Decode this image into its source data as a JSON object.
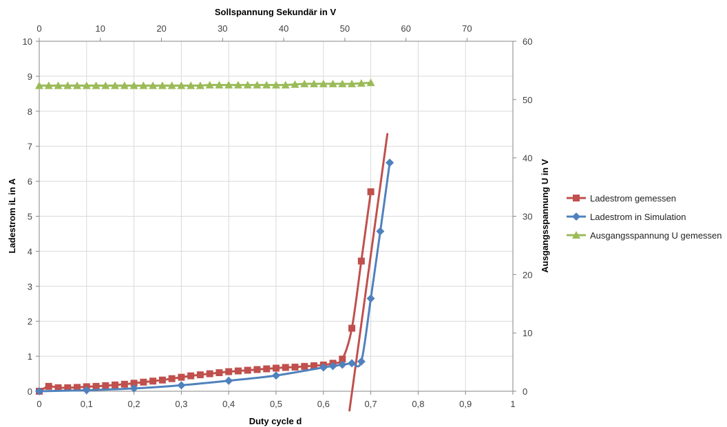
{
  "chart_data": {
    "type": "scatter",
    "title": "",
    "xlabel": "Duty cycle d",
    "x2label": "Sollspannung Sekundär in V",
    "ylabel": "Ladestrom iL in A",
    "y2label": "Ausgangsspannung U in V",
    "xlim": [
      0,
      1
    ],
    "x2lim": [
      0,
      77.5
    ],
    "ylim": [
      0,
      10
    ],
    "y2lim": [
      0,
      60
    ],
    "x_ticks": [
      0,
      0.1,
      0.2,
      0.3,
      0.4,
      0.5,
      0.6,
      0.7,
      0.8,
      0.9,
      1
    ],
    "x_tick_labels": [
      "0",
      "0,1",
      "0,2",
      "0,3",
      "0,4",
      "0,5",
      "0,6",
      "0,7",
      "0,8",
      "0,9",
      "1"
    ],
    "x2_ticks": [
      0,
      10,
      20,
      30,
      40,
      50,
      60,
      70
    ],
    "y_ticks": [
      0,
      1,
      2,
      3,
      4,
      5,
      6,
      7,
      8,
      9,
      10
    ],
    "y2_ticks": [
      0,
      10,
      20,
      30,
      40,
      50,
      60
    ],
    "grid": true,
    "legend_position": "right",
    "series": [
      {
        "name": "Ladestrom gemessen",
        "axis": "primary",
        "color": "#c0504d",
        "marker": "square",
        "x": [
          0,
          0.02,
          0.04,
          0.06,
          0.08,
          0.1,
          0.12,
          0.14,
          0.16,
          0.18,
          0.2,
          0.22,
          0.24,
          0.26,
          0.28,
          0.3,
          0.32,
          0.34,
          0.36,
          0.38,
          0.4,
          0.42,
          0.44,
          0.46,
          0.48,
          0.5,
          0.52,
          0.54,
          0.56,
          0.58,
          0.6,
          0.62,
          0.64,
          0.66,
          0.68,
          0.7
        ],
        "y": [
          0,
          0.14,
          0.1,
          0.1,
          0.11,
          0.13,
          0.14,
          0.16,
          0.18,
          0.2,
          0.23,
          0.26,
          0.29,
          0.32,
          0.36,
          0.4,
          0.44,
          0.47,
          0.5,
          0.53,
          0.56,
          0.58,
          0.6,
          0.62,
          0.64,
          0.66,
          0.68,
          0.69,
          0.71,
          0.73,
          0.75,
          0.8,
          0.92,
          1.8,
          3.72,
          5.7
        ]
      },
      {
        "name": "Ladestrom in Simulation",
        "axis": "primary",
        "color": "#4f81bd",
        "marker": "diamond",
        "x": [
          0,
          0.1,
          0.2,
          0.3,
          0.4,
          0.5,
          0.6,
          0.62,
          0.64,
          0.66,
          0.68,
          0.7,
          0.72,
          0.74
        ],
        "y": [
          0,
          0.03,
          0.08,
          0.17,
          0.3,
          0.45,
          0.68,
          0.72,
          0.76,
          0.8,
          0.85,
          2.65,
          4.57,
          6.53
        ]
      },
      {
        "name": "Ausgangsspannung U gemessen",
        "axis": "secondary",
        "color": "#9bbb59",
        "marker": "triangle",
        "x": [
          0,
          0.02,
          0.04,
          0.06,
          0.08,
          0.1,
          0.12,
          0.14,
          0.16,
          0.18,
          0.2,
          0.22,
          0.24,
          0.26,
          0.28,
          0.3,
          0.32,
          0.34,
          0.36,
          0.38,
          0.4,
          0.42,
          0.44,
          0.46,
          0.48,
          0.5,
          0.52,
          0.54,
          0.56,
          0.58,
          0.6,
          0.62,
          0.64,
          0.66,
          0.68,
          0.7
        ],
        "y": [
          52.4,
          52.4,
          52.4,
          52.4,
          52.4,
          52.4,
          52.4,
          52.4,
          52.4,
          52.4,
          52.4,
          52.4,
          52.4,
          52.4,
          52.4,
          52.4,
          52.4,
          52.4,
          52.5,
          52.5,
          52.5,
          52.5,
          52.5,
          52.5,
          52.5,
          52.5,
          52.5,
          52.6,
          52.7,
          52.7,
          52.7,
          52.7,
          52.7,
          52.7,
          52.8,
          52.9
        ]
      }
    ],
    "annotations": [
      {
        "type": "line",
        "color": "#c0504d",
        "x": [
          0.655,
          0.735
        ],
        "y": [
          -0.55,
          7.35
        ]
      }
    ]
  }
}
